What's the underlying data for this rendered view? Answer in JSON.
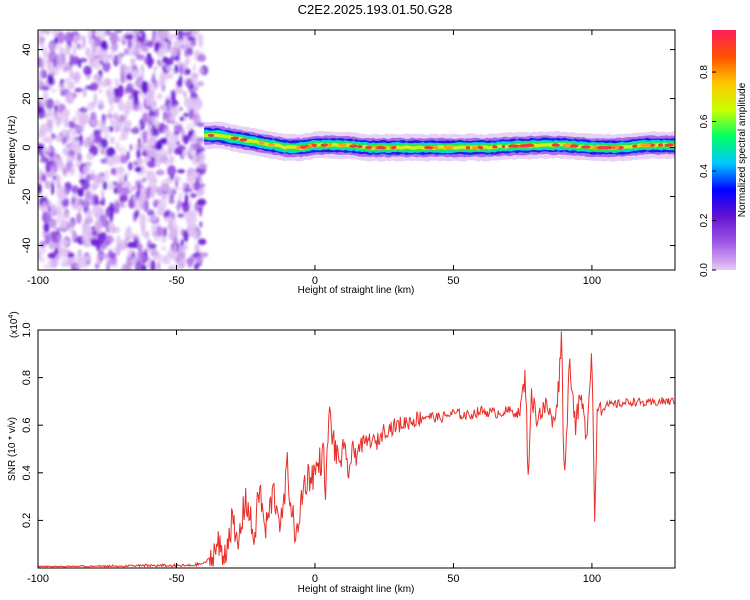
{
  "title": "C2E2.2025.193.01.50.G28",
  "chart_data": [
    {
      "type": "heatmap",
      "xlabel": "Height of straight line (km)",
      "ylabel": "Frequency (Hz)",
      "xlim": [
        -100,
        130
      ],
      "ylim": [
        -50,
        48
      ],
      "xticks": [
        -100,
        -50,
        0,
        50,
        100
      ],
      "yticks": [
        -40,
        -20,
        0,
        20,
        40
      ],
      "noise_region_x": [
        -100,
        -40
      ],
      "ridge": {
        "x": [
          -40,
          -35,
          -30,
          -25,
          -20,
          -15,
          -10,
          -5,
          0,
          5,
          10,
          20,
          40,
          60,
          80,
          90,
          100,
          110,
          120,
          130
        ],
        "frequency": [
          5,
          5,
          4,
          3,
          2,
          1,
          0,
          0,
          1,
          1,
          1,
          0,
          0,
          0,
          1,
          1,
          0,
          0,
          1,
          1
        ]
      },
      "colorbar": {
        "label": "Normalized spectral amplitude",
        "range": [
          0,
          0.97
        ],
        "ticks": [
          "0.0",
          "0.2",
          "0.4",
          "0.6",
          "0.8"
        ],
        "colors": [
          "#e6c8f5",
          "#a05ae6",
          "#6414d2",
          "#0000ff",
          "#00c8ff",
          "#00ff64",
          "#c8ff00",
          "#ffc800",
          "#ff5000",
          "#ff1e5a"
        ]
      }
    },
    {
      "type": "line",
      "xlabel": "Height of straight line (km)",
      "ylabel": "SNR (10 * v/v)",
      "scale_label": "(x10",
      "scale_exponent": "4",
      "scale_suffix": ")",
      "xlim": [
        -100,
        130
      ],
      "ylim": [
        0,
        1.0
      ],
      "xticks": [
        -100,
        -50,
        0,
        50,
        100
      ],
      "yticks": [
        "0.2",
        "0.4",
        "0.6",
        "0.8",
        "1.0"
      ],
      "color": "#e8302a",
      "series": [
        {
          "x": [
            -100,
            -80,
            -60,
            -45,
            -40,
            -37,
            -35,
            -33,
            -30,
            -28,
            -25,
            -22,
            -20,
            -18,
            -15,
            -12,
            -10,
            -8,
            -6,
            -5,
            -3,
            0,
            3,
            4,
            5,
            8,
            10,
            12,
            15,
            20,
            22,
            25,
            30,
            35,
            40,
            45,
            50,
            55,
            60,
            65,
            70,
            74,
            76,
            77,
            78,
            80,
            84,
            86,
            88,
            89,
            90,
            92,
            94,
            96,
            98,
            100,
            101,
            102,
            104,
            110,
            115,
            120,
            125,
            130
          ],
          "y": [
            0.0,
            0.005,
            0.01,
            0.01,
            0.02,
            0.05,
            0.1,
            0.04,
            0.2,
            0.08,
            0.3,
            0.12,
            0.34,
            0.15,
            0.32,
            0.18,
            0.42,
            0.2,
            0.12,
            0.3,
            0.38,
            0.4,
            0.48,
            0.32,
            0.65,
            0.45,
            0.48,
            0.42,
            0.5,
            0.54,
            0.52,
            0.58,
            0.6,
            0.62,
            0.64,
            0.63,
            0.65,
            0.64,
            0.66,
            0.65,
            0.66,
            0.65,
            0.81,
            0.37,
            0.72,
            0.64,
            0.68,
            0.6,
            0.76,
            1.0,
            0.36,
            0.88,
            0.6,
            0.72,
            0.55,
            0.93,
            0.18,
            0.7,
            0.68,
            0.69,
            0.7,
            0.69,
            0.7,
            0.7
          ]
        }
      ]
    }
  ]
}
